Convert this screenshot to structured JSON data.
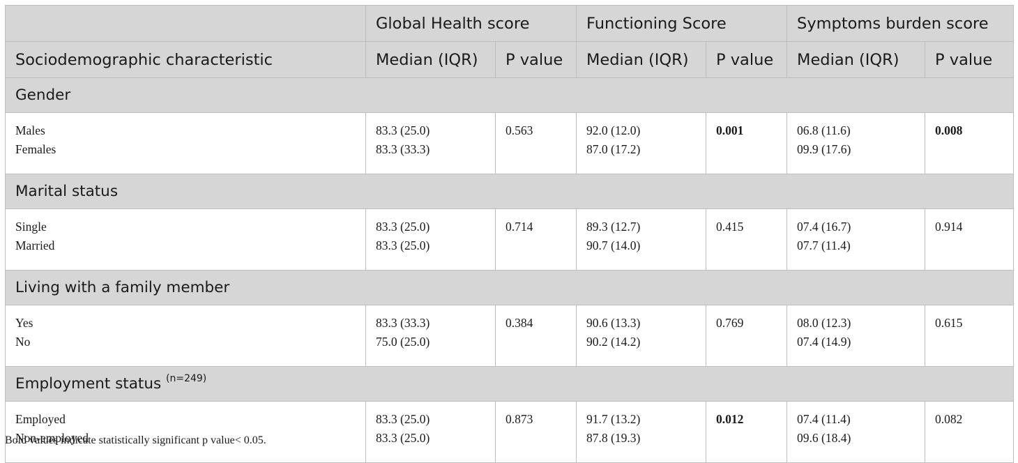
{
  "header": {
    "group_global": "Global Health score",
    "group_functioning": "Functioning Score",
    "group_symptoms": "Symptoms burden score",
    "characteristic": "Sociodemographic characteristic",
    "median_iqr": "Median (IQR)",
    "p_value": "P value"
  },
  "sections": [
    {
      "title": "Gender",
      "sup": "",
      "rows": {
        "labels": [
          "Males",
          "Females"
        ],
        "global_median": [
          "83.3 (25.0)",
          "83.3 (33.3)"
        ],
        "global_p": "0.563",
        "global_p_bold": false,
        "func_median": [
          "92.0 (12.0)",
          "87.0 (17.2)"
        ],
        "func_p": "0.001",
        "func_p_bold": true,
        "sym_median": [
          "06.8 (11.6)",
          "09.9 (17.6)"
        ],
        "sym_p": "0.008",
        "sym_p_bold": true
      }
    },
    {
      "title": "Marital status",
      "sup": "",
      "rows": {
        "labels": [
          "Single",
          "Married"
        ],
        "global_median": [
          "83.3 (25.0)",
          "83.3 (25.0)"
        ],
        "global_p": "0.714",
        "global_p_bold": false,
        "func_median": [
          "89.3 (12.7)",
          "90.7 (14.0)"
        ],
        "func_p": "0.415",
        "func_p_bold": false,
        "sym_median": [
          "07.4 (16.7)",
          "07.7 (11.4)"
        ],
        "sym_p": "0.914",
        "sym_p_bold": false
      }
    },
    {
      "title": "Living with a family member",
      "sup": "",
      "rows": {
        "labels": [
          "Yes",
          "No"
        ],
        "global_median": [
          "83.3 (33.3)",
          "75.0 (25.0)"
        ],
        "global_p": "0.384",
        "global_p_bold": false,
        "func_median": [
          "90.6 (13.3)",
          "90.2 (14.2)"
        ],
        "func_p": "0.769",
        "func_p_bold": false,
        "sym_median": [
          "08.0 (12.3)",
          "07.4 (14.9)"
        ],
        "sym_p": "0.615",
        "sym_p_bold": false
      }
    },
    {
      "title": "Employment status",
      "sup": "(n=249)",
      "rows": {
        "labels": [
          "Employed",
          "Non-employed"
        ],
        "global_median": [
          "83.3 (25.0)",
          "83.3 (25.0)"
        ],
        "global_p": "0.873",
        "global_p_bold": false,
        "func_median": [
          "91.7 (13.2)",
          "87.8 (19.3)"
        ],
        "func_p": "0.012",
        "func_p_bold": true,
        "sym_median": [
          "07.4 (11.4)",
          "09.6 (18.4)"
        ],
        "sym_p": "0.082",
        "sym_p_bold": false
      }
    }
  ],
  "footnote": "Bold values indicate statistically significant p value< 0.05."
}
